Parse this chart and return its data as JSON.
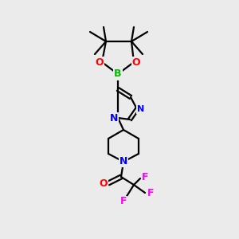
{
  "background_color": "#ebebeb",
  "bond_color": "#000000",
  "atom_colors": {
    "O": "#ff0000",
    "B": "#00bb00",
    "N": "#0000ff",
    "F": "#ff00ff"
  },
  "figsize": [
    3.0,
    3.0
  ],
  "dpi": 100
}
